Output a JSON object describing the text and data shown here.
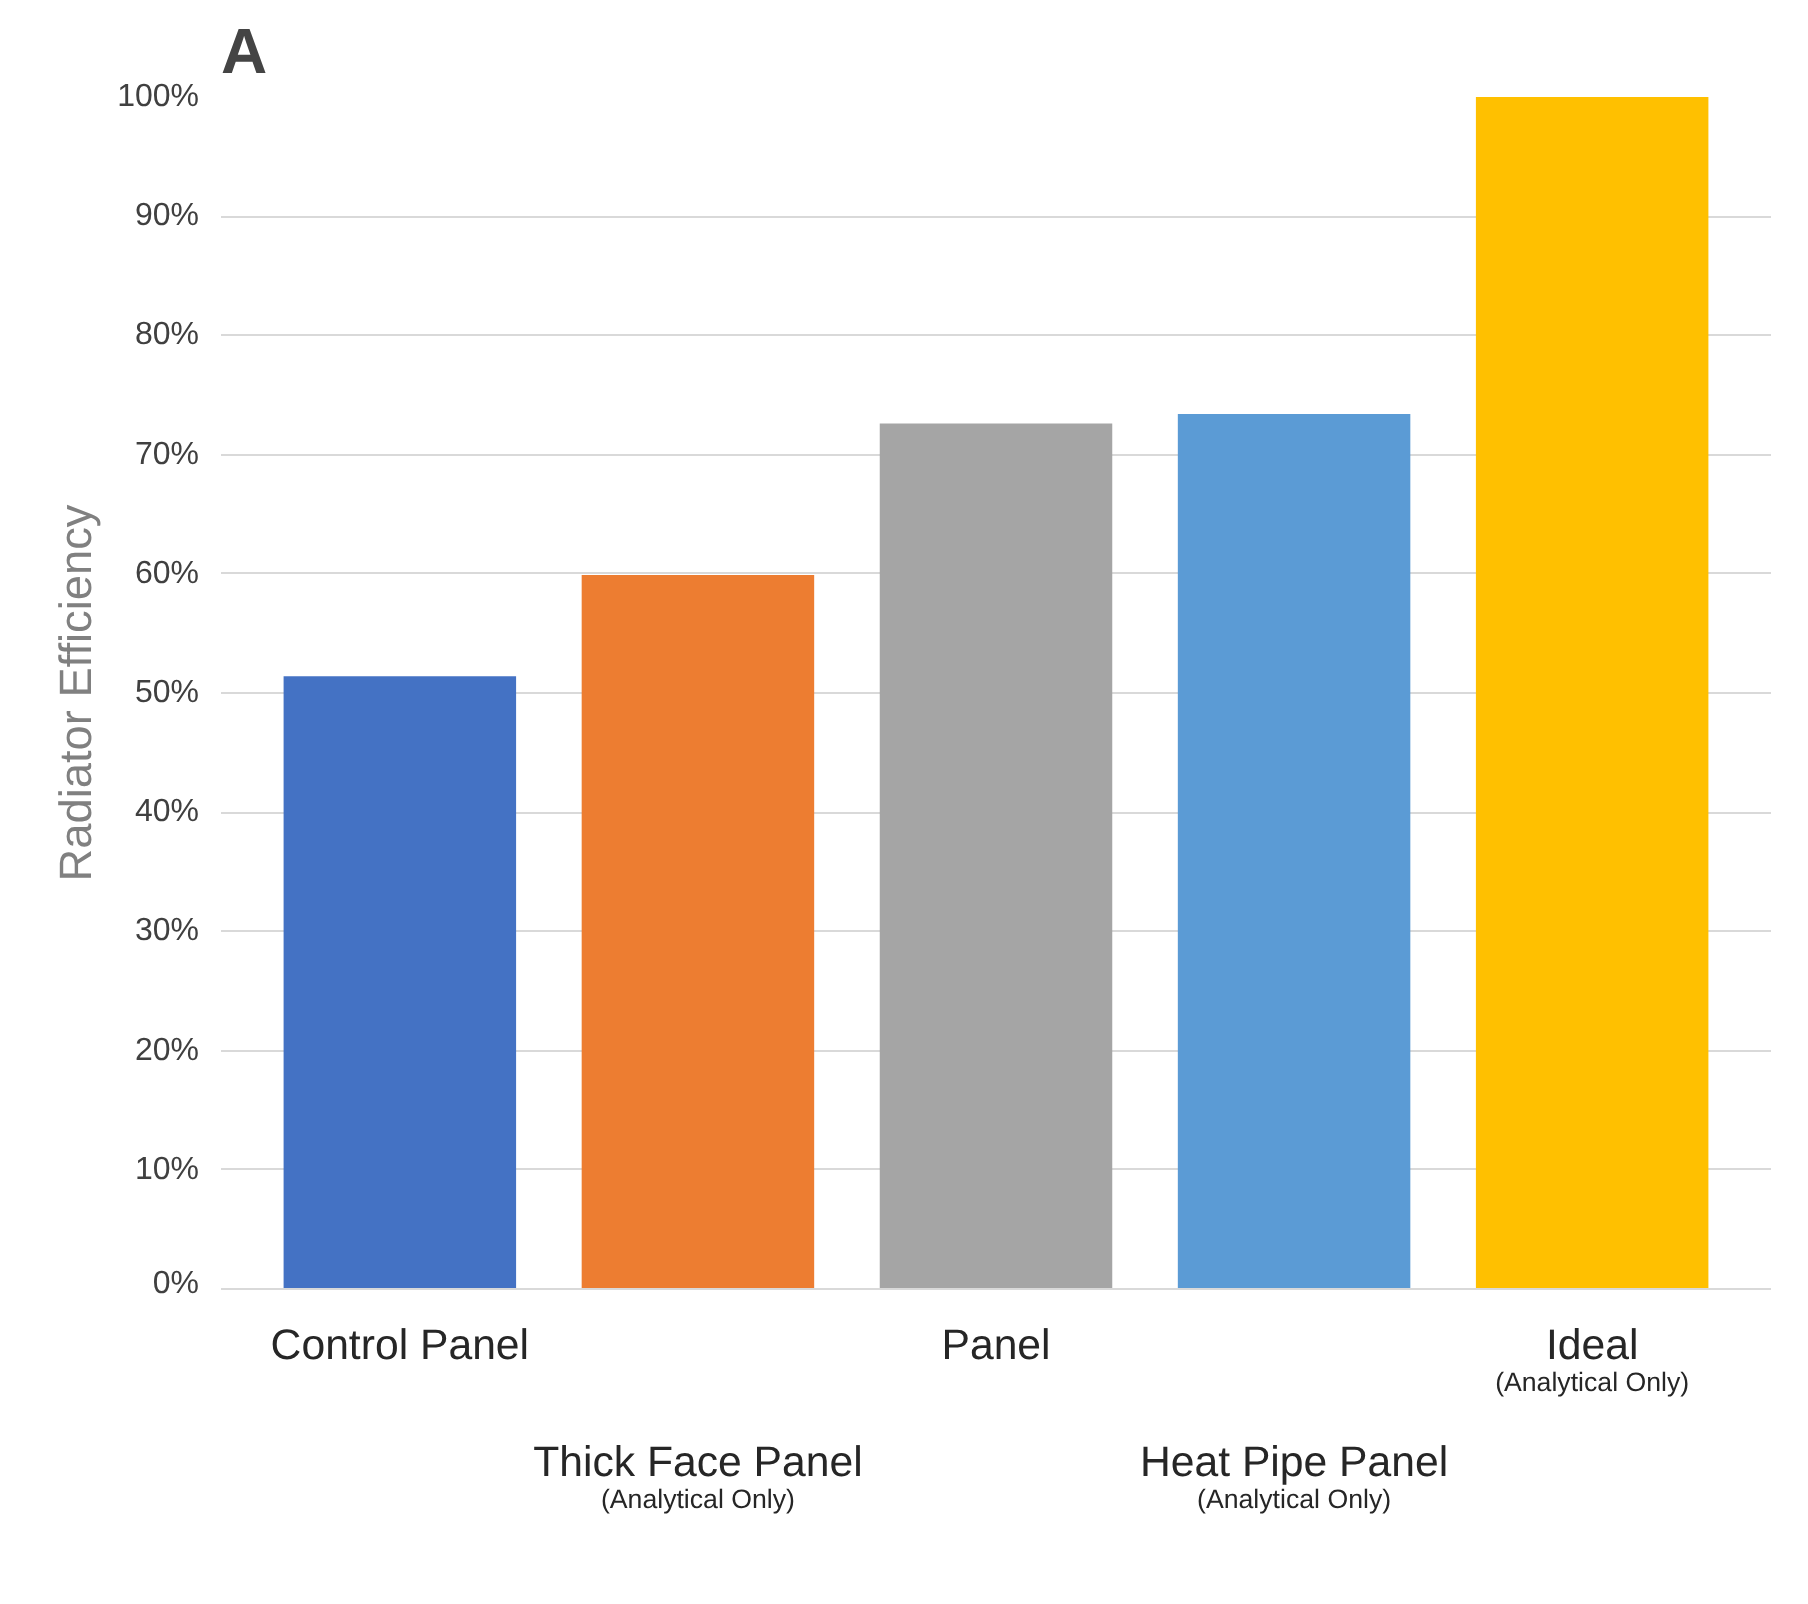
{
  "chart_data": {
    "type": "bar",
    "ylabel": "Radiator Efficiency",
    "categories": [
      "Control Panel",
      "Thick Face Panel\n(Analytical Only)",
      "Panel",
      "Heat Pipe Panel\n(Analytical Only)",
      "Ideal\n(Analytical Only)"
    ],
    "values": [
      51.4,
      59.9,
      72.6,
      73.4,
      100
    ],
    "colors": [
      "#4472c4",
      "#ed7d31",
      "#a5a5a5",
      "#5b9bd5",
      "#ffc000"
    ],
    "ylim": [
      0,
      100
    ],
    "yticks": [
      {
        "value": 0,
        "label": "0%"
      },
      {
        "value": 10,
        "label": "10%"
      },
      {
        "value": 20,
        "label": "20%"
      },
      {
        "value": 30,
        "label": "30%"
      },
      {
        "value": 40,
        "label": "40%"
      },
      {
        "value": 50,
        "label": "50%"
      },
      {
        "value": 60,
        "label": "60%"
      },
      {
        "value": 70,
        "label": "70%"
      },
      {
        "value": 80,
        "label": "80%"
      },
      {
        "value": 90,
        "label": "90%"
      },
      {
        "value": 100,
        "label": "100%"
      }
    ],
    "grid": "y",
    "annotations": [
      "A"
    ]
  }
}
